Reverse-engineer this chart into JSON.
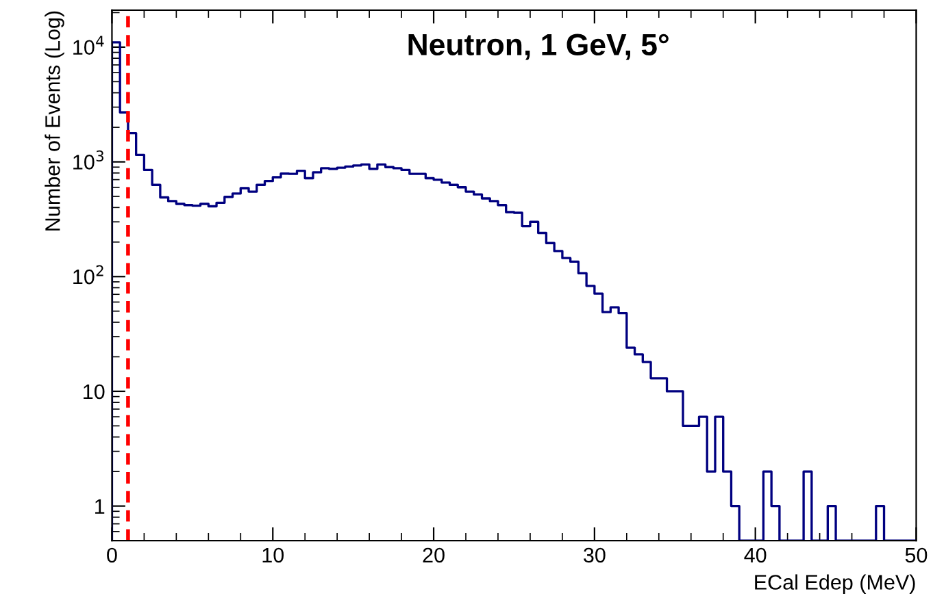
{
  "chart_data": {
    "type": "histogram",
    "title": "Neutron, 1 GeV, 5°",
    "xlabel": "ECal Edep (MeV)",
    "ylabel": "Number of Events (Log)",
    "bins": [
      0,
      0.5,
      1,
      1.5,
      2,
      2.5,
      3,
      3.5,
      4,
      4.5,
      5,
      5.5,
      6,
      6.5,
      7,
      7.5,
      8,
      8.5,
      9,
      9.5,
      10,
      10.5,
      11,
      11.5,
      12,
      12.5,
      13,
      13.5,
      14,
      14.5,
      15,
      15.5,
      16,
      16.5,
      17,
      17.5,
      18,
      18.5,
      19,
      19.5,
      20,
      20.5,
      21,
      21.5,
      22,
      22.5,
      23,
      23.5,
      24,
      24.5,
      25,
      25.5,
      26,
      26.5,
      27,
      27.5,
      28,
      28.5,
      29,
      29.5,
      30,
      30.5,
      31,
      31.5,
      32,
      32.5,
      33,
      33.5,
      34,
      34.5,
      35,
      35.5,
      36,
      36.5,
      37,
      37.5,
      38,
      38.5,
      39,
      39.5,
      40,
      40.5,
      41,
      41.5,
      42,
      42.5,
      43,
      43.5,
      44,
      44.5,
      45,
      45.5,
      46,
      46.5,
      47,
      47.5,
      48,
      48.5,
      49,
      49.5,
      50
    ],
    "values": [
      11000,
      2700,
      1780,
      1150,
      850,
      630,
      490,
      455,
      430,
      420,
      415,
      430,
      410,
      440,
      495,
      530,
      590,
      550,
      630,
      680,
      735,
      790,
      785,
      835,
      720,
      810,
      880,
      870,
      890,
      910,
      930,
      950,
      870,
      950,
      900,
      880,
      850,
      785,
      785,
      720,
      700,
      660,
      630,
      600,
      550,
      520,
      480,
      455,
      420,
      365,
      360,
      275,
      300,
      240,
      196,
      167,
      145,
      135,
      107,
      83,
      71,
      49,
      54,
      48,
      24,
      21,
      18,
      13,
      13,
      10,
      10,
      5,
      5,
      6,
      2,
      6,
      2,
      1,
      null,
      null,
      null,
      2,
      1,
      null,
      null,
      null,
      2,
      null,
      null,
      1,
      null,
      null,
      null,
      null,
      null,
      1,
      null,
      null,
      null,
      null
    ],
    "color": "#000080",
    "log": "y",
    "xlim": [
      0,
      50
    ],
    "xticks": [
      0,
      10,
      20,
      30,
      40,
      50
    ],
    "ylim": [
      0.5,
      21000
    ],
    "yticks": [
      1,
      10,
      {
        "value": 100,
        "label": "10$^{2}$"
      },
      {
        "value": 1000,
        "label": "10$^{3}$"
      },
      {
        "value": 10000,
        "label": "10$^{4}$"
      }
    ],
    "ref_lines": [
      {
        "axis": "x",
        "value": 1,
        "color": "#ff0000",
        "line_style": "dashed"
      }
    ],
    "grid": false,
    "legend": false
  }
}
